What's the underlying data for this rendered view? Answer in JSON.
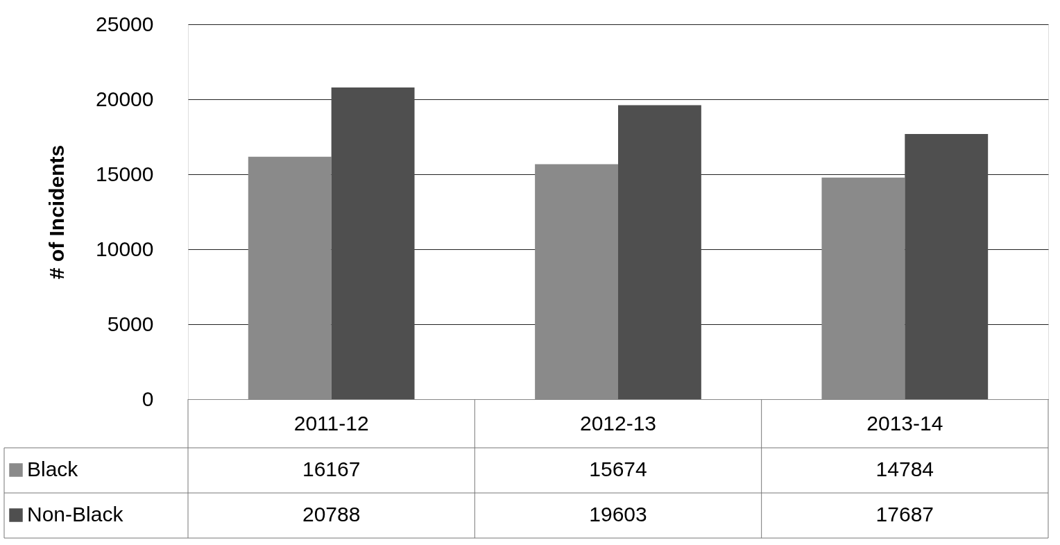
{
  "chart_data": {
    "type": "bar",
    "ylabel": "# of Incidents",
    "categories": [
      "2011-12",
      "2012-13",
      "2013-14"
    ],
    "series": [
      {
        "name": "Black",
        "color": "#8a8a8a",
        "values": [
          16167,
          15674,
          14784
        ]
      },
      {
        "name": "Non-Black",
        "color": "#4f4f4f",
        "values": [
          20788,
          19603,
          17687
        ]
      }
    ],
    "ylim": [
      0,
      25000
    ],
    "yticks": [
      0,
      5000,
      10000,
      15000,
      20000,
      25000
    ],
    "grid": "y",
    "legend": "bottom",
    "data_labels": true
  }
}
